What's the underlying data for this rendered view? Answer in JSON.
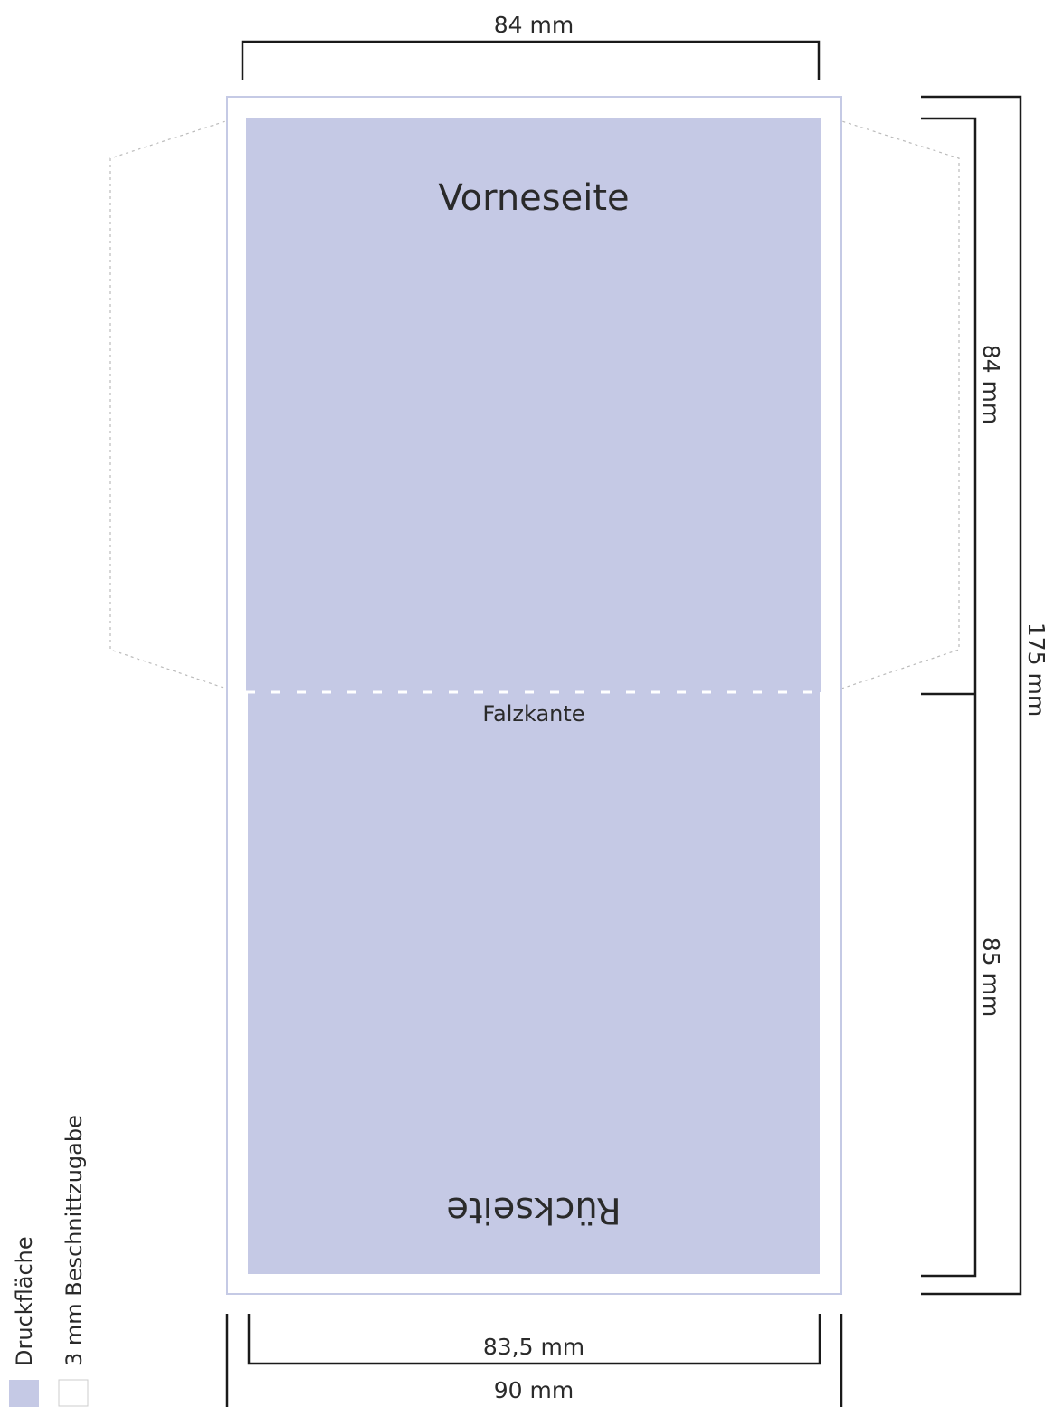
{
  "top_dimension": "84 mm",
  "front_label": "Vorneseite",
  "fold_label": "Falzkante",
  "back_label": "Rückseite",
  "right_dimensions": {
    "upper": "84 mm",
    "lower": "85 mm",
    "total": "175 mm"
  },
  "bottom_dimensions": {
    "inner": "83,5 mm",
    "outer": "90 mm"
  },
  "legend": [
    "Druckfläche",
    "3 mm Beschnittzugabe"
  ]
}
